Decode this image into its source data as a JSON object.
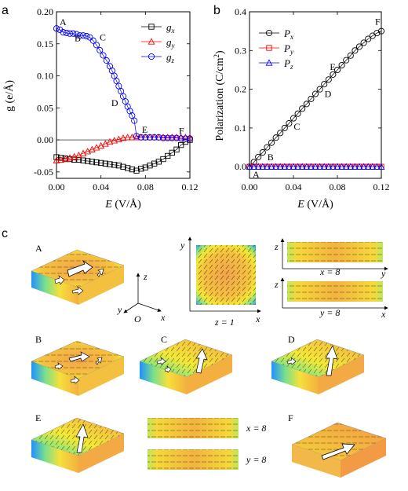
{
  "panel_labels": {
    "a": "a",
    "b": "b",
    "c": "c"
  },
  "chart_data": [
    {
      "panel": "a",
      "type": "scatter",
      "xlabel_italic": "E",
      "xlabel_rest": " (V/Å)",
      "ylabel": "g (e/Å)",
      "xlim": [
        0,
        0.12
      ],
      "ylim": [
        -0.06,
        0.2
      ],
      "xticks": [
        "0.00",
        "0.04",
        "0.08",
        "0.12"
      ],
      "yticks": [
        "-0.05",
        "0.00",
        "0.05",
        "0.10",
        "0.15",
        "0.20"
      ],
      "legend": [
        {
          "name": "g",
          "sub": "x",
          "marker": "square",
          "color": "#000000"
        },
        {
          "name": "g",
          "sub": "y",
          "marker": "triangle",
          "color": "#ff0000"
        },
        {
          "name": "g",
          "sub": "z",
          "marker": "circle",
          "color": "#0000ff"
        }
      ],
      "legend_position": "top-right",
      "series": [
        {
          "key": "gx",
          "marker": "square",
          "color": "#000000",
          "x": [
            0,
            0.004,
            0.008,
            0.012,
            0.016,
            0.02,
            0.024,
            0.028,
            0.032,
            0.036,
            0.04,
            0.044,
            0.048,
            0.052,
            0.056,
            0.06,
            0.064,
            0.068,
            0.072,
            0.076,
            0.08,
            0.084,
            0.088,
            0.092,
            0.096,
            0.1,
            0.104,
            0.108,
            0.112,
            0.116,
            0.12
          ],
          "y": [
            -0.027,
            -0.028,
            -0.029,
            -0.03,
            -0.031,
            -0.031,
            -0.032,
            -0.033,
            -0.034,
            -0.035,
            -0.036,
            -0.037,
            -0.038,
            -0.039,
            -0.04,
            -0.042,
            -0.044,
            -0.046,
            -0.048,
            -0.045,
            -0.043,
            -0.04,
            -0.037,
            -0.034,
            -0.03,
            -0.025,
            -0.02,
            -0.015,
            -0.008,
            -0.003,
            0.0
          ]
        },
        {
          "key": "gy",
          "marker": "triangle",
          "color": "#ff0000",
          "x": [
            0,
            0.004,
            0.008,
            0.012,
            0.016,
            0.02,
            0.024,
            0.028,
            0.032,
            0.036,
            0.04,
            0.044,
            0.048,
            0.052,
            0.056,
            0.06,
            0.064,
            0.068,
            0.072,
            0.076,
            0.08,
            0.084,
            0.088,
            0.092,
            0.096,
            0.1,
            0.104,
            0.108,
            0.112,
            0.116,
            0.12
          ],
          "y": [
            -0.032,
            -0.031,
            -0.03,
            -0.028,
            -0.026,
            -0.024,
            -0.021,
            -0.018,
            -0.015,
            -0.012,
            -0.009,
            -0.006,
            -0.003,
            -0.001,
            0.001,
            0.003,
            0.004,
            0.004,
            0.004,
            0.004,
            0.004,
            0.004,
            0.004,
            0.004,
            0.004,
            0.004,
            0.004,
            0.004,
            0.004,
            0.004,
            0.004
          ]
        },
        {
          "key": "gz",
          "marker": "circle",
          "color": "#0000ff",
          "x": [
            0,
            0.003,
            0.006,
            0.009,
            0.012,
            0.015,
            0.018,
            0.021,
            0.024,
            0.027,
            0.03,
            0.033,
            0.036,
            0.039,
            0.042,
            0.045,
            0.048,
            0.05,
            0.052,
            0.054,
            0.056,
            0.058,
            0.06,
            0.062,
            0.064,
            0.066,
            0.068,
            0.07,
            0.072,
            0.076,
            0.08,
            0.084,
            0.088,
            0.092,
            0.096,
            0.1,
            0.104,
            0.108,
            0.112,
            0.116,
            0.12
          ],
          "y": [
            0.174,
            0.172,
            0.168,
            0.167,
            0.166,
            0.166,
            0.165,
            0.163,
            0.163,
            0.162,
            0.16,
            0.155,
            0.148,
            0.14,
            0.132,
            0.124,
            0.115,
            0.108,
            0.1,
            0.092,
            0.084,
            0.076,
            0.068,
            0.06,
            0.052,
            0.045,
            0.038,
            0.03,
            0.006,
            0.004,
            0.004,
            0.004,
            0.004,
            0.004,
            0.003,
            0.003,
            0.003,
            0.003,
            0.002,
            0.002,
            0.002
          ]
        }
      ],
      "annotations": [
        {
          "text": "A",
          "x": 0.0,
          "y": 0.174
        },
        {
          "text": "B",
          "x": 0.012,
          "y": 0.166
        },
        {
          "text": "C",
          "x": 0.036,
          "y": 0.148
        },
        {
          "text": "D",
          "x": 0.062,
          "y": 0.06
        },
        {
          "text": "E",
          "x": 0.074,
          "y": 0.004
        },
        {
          "text": "F",
          "x": 0.12,
          "y": 0.002
        }
      ]
    },
    {
      "panel": "b",
      "type": "scatter",
      "xlabel_italic": "E",
      "xlabel_rest": " (V/Å)",
      "ylabel": "Polarization (C/cm",
      "ylabel_sup": "2",
      "ylabel_end": ")",
      "xlim": [
        0,
        0.12
      ],
      "ylim": [
        -0.03,
        0.4
      ],
      "xticks": [
        "0.00",
        "0.04",
        "0.08",
        "0.12"
      ],
      "yticks": [
        "0.0",
        "0.1",
        "0.2",
        "0.3",
        "0.4"
      ],
      "legend": [
        {
          "name": "P",
          "sub": "x",
          "marker": "circle",
          "color": "#000000"
        },
        {
          "name": "P",
          "sub": "y",
          "marker": "square",
          "color": "#ff0000"
        },
        {
          "name": "P",
          "sub": "z",
          "marker": "triangle",
          "color": "#0000ff"
        }
      ],
      "legend_position": "top-left",
      "series": [
        {
          "key": "Px",
          "marker": "circle",
          "color": "#000000",
          "x": [
            0,
            0.004,
            0.008,
            0.012,
            0.016,
            0.02,
            0.024,
            0.028,
            0.032,
            0.036,
            0.04,
            0.044,
            0.048,
            0.052,
            0.056,
            0.06,
            0.064,
            0.068,
            0.072,
            0.076,
            0.08,
            0.084,
            0.088,
            0.092,
            0.096,
            0.1,
            0.104,
            0.108,
            0.112,
            0.116,
            0.12
          ],
          "y": [
            0,
            0.012,
            0.025,
            0.037,
            0.05,
            0.062,
            0.075,
            0.087,
            0.1,
            0.112,
            0.125,
            0.137,
            0.15,
            0.162,
            0.175,
            0.188,
            0.2,
            0.213,
            0.225,
            0.238,
            0.25,
            0.262,
            0.275,
            0.287,
            0.3,
            0.31,
            0.32,
            0.33,
            0.338,
            0.345,
            0.35
          ]
        },
        {
          "key": "Py",
          "marker": "square",
          "color": "#ff0000",
          "x": [
            0,
            0.004,
            0.008,
            0.012,
            0.016,
            0.02,
            0.024,
            0.028,
            0.032,
            0.036,
            0.04,
            0.044,
            0.048,
            0.052,
            0.056,
            0.06,
            0.064,
            0.068,
            0.072,
            0.076,
            0.08,
            0.084,
            0.088,
            0.092,
            0.096,
            0.1,
            0.104,
            0.108,
            0.112,
            0.116,
            0.12
          ],
          "y": [
            0,
            0,
            0,
            0,
            0,
            0,
            0,
            0,
            0,
            0,
            0,
            0,
            0,
            0,
            0,
            0,
            0,
            0,
            0,
            0,
            0,
            0,
            0,
            0,
            0,
            0,
            0,
            0,
            0,
            0,
            0
          ]
        },
        {
          "key": "Pz",
          "marker": "triangle",
          "color": "#0000ff",
          "x": [
            0,
            0.004,
            0.008,
            0.012,
            0.016,
            0.02,
            0.024,
            0.028,
            0.032,
            0.036,
            0.04,
            0.044,
            0.048,
            0.052,
            0.056,
            0.06,
            0.064,
            0.068,
            0.072,
            0.076,
            0.08,
            0.084,
            0.088,
            0.092,
            0.096,
            0.1,
            0.104,
            0.108,
            0.112,
            0.116,
            0.12
          ],
          "y": [
            0,
            0,
            0,
            0,
            0,
            0,
            0,
            0,
            0,
            0,
            0,
            0,
            0,
            0,
            0,
            0,
            0,
            0,
            0,
            0,
            0,
            0,
            0,
            0,
            0,
            0,
            0,
            0,
            0,
            0,
            0
          ]
        }
      ],
      "annotations": [
        {
          "text": "A",
          "x": 0.0,
          "y": 0.0
        },
        {
          "text": "B",
          "x": 0.012,
          "y": 0.037
        },
        {
          "text": "C",
          "x": 0.036,
          "y": 0.112
        },
        {
          "text": "D",
          "x": 0.064,
          "y": 0.2
        },
        {
          "text": "E",
          "x": 0.076,
          "y": 0.238
        },
        {
          "text": "F",
          "x": 0.12,
          "y": 0.35
        }
      ]
    }
  ],
  "panel_c": {
    "state_labels": [
      "A",
      "B",
      "C",
      "D",
      "E",
      "F"
    ],
    "axes_triad": {
      "z": "z",
      "y": "y",
      "x": "x",
      "origin": "O"
    },
    "top_square": {
      "ylabel": "y",
      "xlabel": "x",
      "caption": "z = 1"
    },
    "slice_x8": {
      "zlabel": "z",
      "ylabel": "y",
      "caption": "x = 8"
    },
    "slice_y8": {
      "zlabel": "z",
      "xlabel": "x",
      "caption": "y = 8"
    },
    "e_slice_x8": "x = 8",
    "e_slice_y8": "y = 8"
  }
}
